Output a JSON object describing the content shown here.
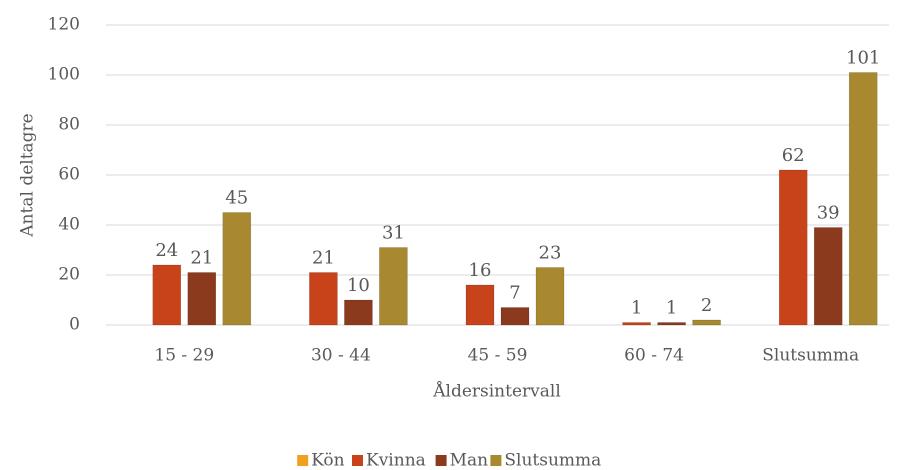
{
  "chart_data": {
    "type": "bar",
    "x_label": "Åldersintervall",
    "y_label": "Antal deltagre",
    "categories": [
      "15 - 29",
      "30 - 44",
      "45 - 59",
      "60 - 74",
      "Slutsumma"
    ],
    "series": [
      {
        "name": "Kön",
        "color": "#f0a020",
        "values": [
          null,
          null,
          null,
          null,
          null
        ]
      },
      {
        "name": "Kvinna",
        "color": "#c8431a",
        "values": [
          24,
          21,
          16,
          1,
          62
        ]
      },
      {
        "name": "Man",
        "color": "#8b3a1e",
        "values": [
          21,
          10,
          7,
          1,
          39
        ]
      },
      {
        "name": "Slutsumma",
        "color": "#a8892f",
        "values": [
          45,
          31,
          23,
          2,
          101
        ]
      }
    ],
    "ylim": [
      0,
      120
    ],
    "yticks": [
      0,
      20,
      40,
      60,
      80,
      100,
      120
    ],
    "grid": true,
    "legend": "bottom"
  }
}
